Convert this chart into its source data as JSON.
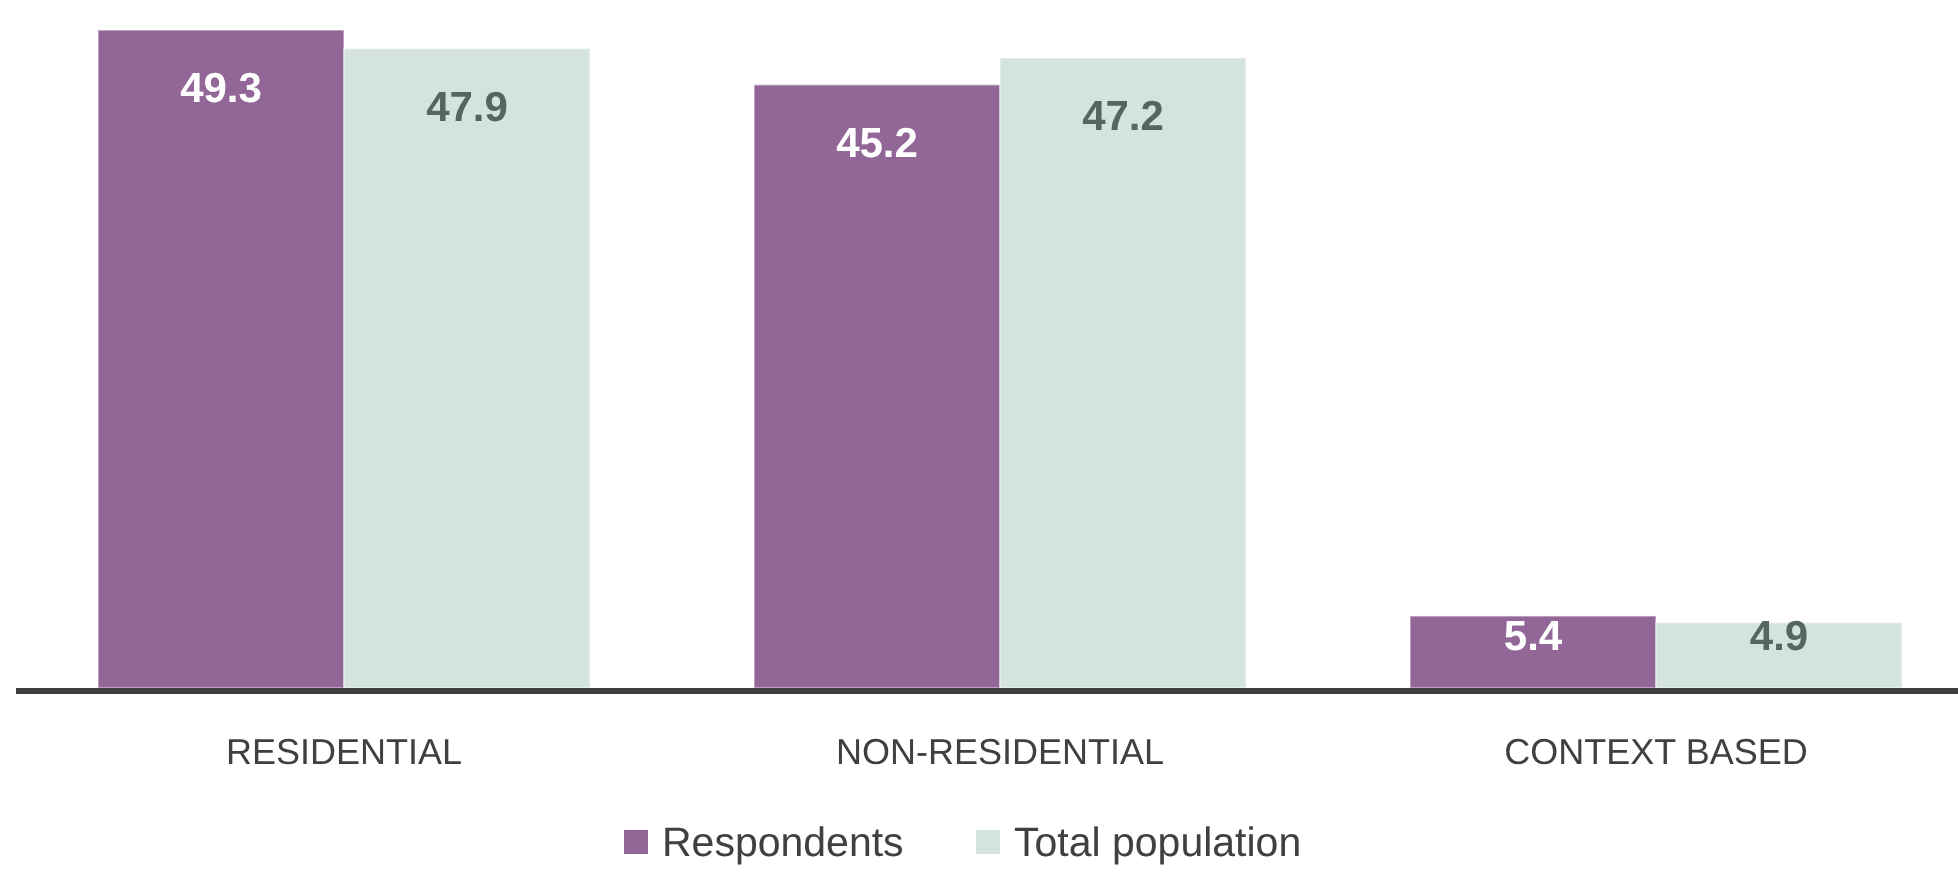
{
  "chart_data": {
    "type": "bar",
    "categories": [
      "RESIDENTIAL",
      "NON-RESIDENTIAL",
      "CONTEXT BASED"
    ],
    "series": [
      {
        "name": "Respondents",
        "color": "#926696",
        "values": [
          49.3,
          45.2,
          5.4
        ]
      },
      {
        "name": "Total population",
        "color": "#d4e3de",
        "values": [
          47.9,
          47.2,
          4.9
        ]
      }
    ],
    "data_labels": true,
    "legend": "bottom"
  }
}
